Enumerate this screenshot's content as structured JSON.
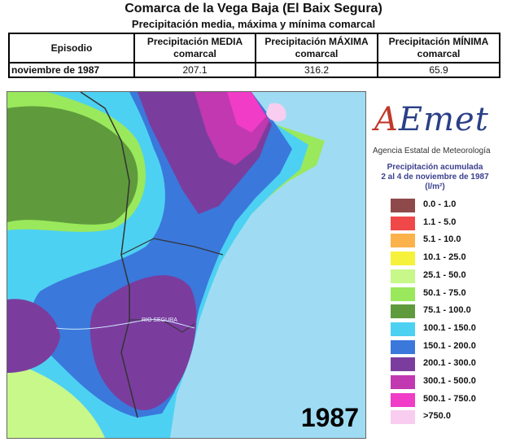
{
  "title": "Comarca de la Vega Baja (El Baix Segura)",
  "subtitle": "Precipitación media, máxima y mínima comarcal",
  "table": {
    "headers": [
      "Episodio",
      "Precipitación MEDIA comarcal",
      "Precipitación MÁXIMA comarcal",
      "Precipitación MÍNIMA comarcal"
    ],
    "rows": [
      [
        "noviembre de 1987",
        "207.1",
        "316.2",
        "65.9"
      ]
    ]
  },
  "map": {
    "river_label": "RIO SEGURA",
    "year": "1987"
  },
  "legend": {
    "agency": "Agencia Estatal de Meteorología",
    "title_line1": "Precipitación acumulada",
    "title_line2": "2 al 4 de noviembre de 1987",
    "title_line3": "(l/m²)",
    "classes": [
      {
        "label": "0.0 - 1.0",
        "color": "#8e4a4a"
      },
      {
        "label": "1.1 - 5.0",
        "color": "#f04848"
      },
      {
        "label": "5.1 - 10.0",
        "color": "#fbb24a"
      },
      {
        "label": "10.1 - 25.0",
        "color": "#f6f23c"
      },
      {
        "label": "25.1 - 50.0",
        "color": "#c8f78a"
      },
      {
        "label": "50.1 - 75.0",
        "color": "#9ae85c"
      },
      {
        "label": "75.1 - 100.0",
        "color": "#5f9b3c"
      },
      {
        "label": "100.1 - 150.0",
        "color": "#4dd1f2"
      },
      {
        "label": "150.1 - 200.0",
        "color": "#3a78dc"
      },
      {
        "label": "200.1 - 300.0",
        "color": "#7a3d9e"
      },
      {
        "label": "300.1 - 500.0",
        "color": "#c138b0"
      },
      {
        "label": "500.1 - 750.0",
        "color": "#f03cc6"
      },
      {
        "label": ">750.0",
        "color": "#f8cdef"
      }
    ]
  }
}
